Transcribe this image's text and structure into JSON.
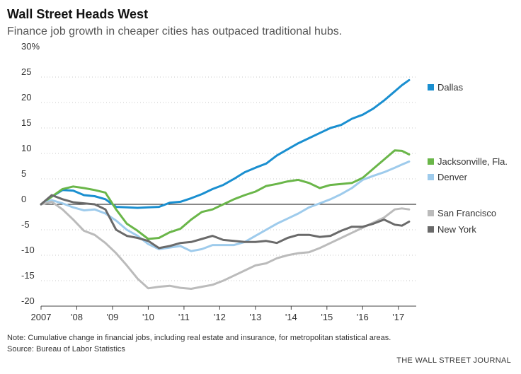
{
  "header": {
    "title": "Wall Street Heads West",
    "subtitle": "Finance job growth in cheaper cities has outpaced traditional hubs."
  },
  "footer": {
    "note": "Note: Cumulative change in financial jobs, including real estate and insurance, for metropolitan statistical areas.",
    "source": "Source: Bureau of Labor Statistics",
    "credit": "THE WALL STREET JOURNAL"
  },
  "chart_data": {
    "type": "line",
    "title": "Wall Street Heads West",
    "subtitle": "Finance job growth in cheaper cities has outpaced traditional hubs.",
    "xlabel": "",
    "ylabel": "",
    "xlim": [
      2007,
      2017.5
    ],
    "ylim": [
      -20,
      30
    ],
    "yticks": [
      -20,
      -15,
      -10,
      -5,
      0,
      5,
      10,
      15,
      20,
      25,
      30
    ],
    "ytick_labels": [
      "-20",
      "-15",
      "-10",
      "-5",
      "0",
      "5",
      "10",
      "15",
      "20",
      "25",
      "30%"
    ],
    "xticks": [
      2007,
      2008,
      2009,
      2010,
      2011,
      2012,
      2013,
      2014,
      2015,
      2016,
      2017
    ],
    "xtick_labels": [
      "2007",
      "'08",
      "'09",
      "'10",
      "'11",
      "'12",
      "'13",
      "'14",
      "'15",
      "'16",
      "'17"
    ],
    "zero_line": true,
    "grid": "horizontal dotted",
    "legend": "right, labels next to line ends",
    "series": [
      {
        "name": "Dallas",
        "color": "#1a8fd0",
        "x": [
          2007.0,
          2007.3,
          2007.6,
          2007.9,
          2008.2,
          2008.5,
          2008.8,
          2009.1,
          2009.4,
          2009.7,
          2010.0,
          2010.3,
          2010.6,
          2010.9,
          2011.2,
          2011.5,
          2011.8,
          2012.1,
          2012.4,
          2012.7,
          2013.0,
          2013.3,
          2013.6,
          2013.9,
          2014.2,
          2014.5,
          2014.8,
          2015.1,
          2015.4,
          2015.7,
          2016.0,
          2016.3,
          2016.6,
          2016.9,
          2017.1,
          2017.3
        ],
        "y": [
          0,
          1.5,
          2.8,
          2.7,
          1.8,
          1.6,
          1.0,
          -0.5,
          -0.6,
          -0.7,
          -0.6,
          -0.5,
          0.3,
          0.5,
          1.2,
          2.0,
          3.0,
          3.8,
          5.0,
          6.3,
          7.2,
          8.0,
          9.6,
          10.8,
          12.0,
          13.0,
          14.0,
          15.0,
          15.6,
          16.8,
          17.6,
          18.8,
          20.4,
          22.2,
          23.4,
          24.4
        ]
      },
      {
        "name": "Jacksonville, Fla.",
        "color": "#6ab649",
        "x": [
          2007.0,
          2007.3,
          2007.6,
          2007.9,
          2008.2,
          2008.5,
          2008.8,
          2009.1,
          2009.4,
          2009.7,
          2010.0,
          2010.3,
          2010.6,
          2010.9,
          2011.2,
          2011.5,
          2011.8,
          2012.1,
          2012.4,
          2012.7,
          2013.0,
          2013.3,
          2013.6,
          2013.9,
          2014.2,
          2014.5,
          2014.8,
          2015.1,
          2015.4,
          2015.7,
          2016.0,
          2016.3,
          2016.6,
          2016.9,
          2017.1,
          2017.3
        ],
        "y": [
          0,
          1.5,
          3.0,
          3.5,
          3.2,
          2.8,
          2.3,
          -1.0,
          -3.8,
          -5.2,
          -6.8,
          -6.6,
          -5.5,
          -4.8,
          -3.0,
          -1.5,
          -1.0,
          0,
          1.0,
          1.8,
          2.5,
          3.6,
          4.0,
          4.5,
          4.8,
          4.2,
          3.2,
          3.8,
          4.0,
          4.2,
          5.2,
          7.0,
          8.8,
          10.6,
          10.5,
          9.8
        ]
      },
      {
        "name": "Denver",
        "color": "#9ecbec",
        "x": [
          2007.0,
          2007.3,
          2007.6,
          2007.9,
          2008.2,
          2008.5,
          2008.8,
          2009.1,
          2009.4,
          2009.7,
          2010.0,
          2010.3,
          2010.6,
          2010.9,
          2011.2,
          2011.5,
          2011.8,
          2012.1,
          2012.4,
          2012.7,
          2013.0,
          2013.3,
          2013.6,
          2013.9,
          2014.2,
          2014.5,
          2014.8,
          2015.1,
          2015.4,
          2015.7,
          2016.0,
          2016.3,
          2016.6,
          2016.9,
          2017.1,
          2017.3
        ],
        "y": [
          0,
          0.8,
          0.2,
          -0.6,
          -1.2,
          -1.0,
          -1.8,
          -3.2,
          -5.0,
          -6.2,
          -7.8,
          -8.8,
          -8.5,
          -8.2,
          -9.2,
          -8.8,
          -8.0,
          -8.0,
          -8.0,
          -7.4,
          -6.2,
          -5.0,
          -3.8,
          -2.8,
          -1.8,
          -0.6,
          0.2,
          1.0,
          2.0,
          3.2,
          4.8,
          5.6,
          6.3,
          7.2,
          7.8,
          8.4
        ]
      },
      {
        "name": "San Francisco",
        "color": "#bbbbbb",
        "x": [
          2007.0,
          2007.3,
          2007.6,
          2007.9,
          2008.2,
          2008.5,
          2008.8,
          2009.1,
          2009.4,
          2009.7,
          2010.0,
          2010.3,
          2010.6,
          2010.9,
          2011.2,
          2011.5,
          2011.8,
          2012.1,
          2012.4,
          2012.7,
          2013.0,
          2013.3,
          2013.6,
          2013.9,
          2014.2,
          2014.5,
          2014.8,
          2015.1,
          2015.4,
          2015.7,
          2016.0,
          2016.3,
          2016.6,
          2016.9,
          2017.1,
          2017.3
        ],
        "y": [
          0,
          0.5,
          -1.0,
          -3.0,
          -5.2,
          -6.0,
          -7.6,
          -9.6,
          -12.0,
          -14.6,
          -16.5,
          -16.2,
          -16.0,
          -16.4,
          -16.6,
          -16.2,
          -15.8,
          -15.0,
          -14.0,
          -13.0,
          -12.0,
          -11.6,
          -10.6,
          -10.0,
          -9.6,
          -9.4,
          -8.6,
          -7.6,
          -6.6,
          -5.6,
          -4.6,
          -3.6,
          -2.6,
          -1.0,
          -0.8,
          -1.0
        ]
      },
      {
        "name": "New York",
        "color": "#6a6a6a",
        "x": [
          2007.0,
          2007.3,
          2007.6,
          2007.9,
          2008.2,
          2008.5,
          2008.8,
          2009.1,
          2009.4,
          2009.7,
          2010.0,
          2010.3,
          2010.6,
          2010.9,
          2011.2,
          2011.5,
          2011.8,
          2012.1,
          2012.4,
          2012.7,
          2013.0,
          2013.3,
          2013.6,
          2013.9,
          2014.2,
          2014.5,
          2014.8,
          2015.1,
          2015.4,
          2015.7,
          2016.0,
          2016.3,
          2016.6,
          2016.9,
          2017.1,
          2017.3
        ],
        "y": [
          0,
          1.8,
          1.0,
          0.4,
          0.2,
          0.0,
          -1.0,
          -5.0,
          -6.2,
          -6.6,
          -7.2,
          -8.6,
          -8.2,
          -7.6,
          -7.4,
          -6.8,
          -6.2,
          -7.0,
          -7.2,
          -7.4,
          -7.4,
          -7.2,
          -7.6,
          -6.6,
          -6.0,
          -6.0,
          -6.4,
          -6.2,
          -5.2,
          -4.4,
          -4.4,
          -3.8,
          -3.0,
          -4.0,
          -4.2,
          -3.4
        ]
      }
    ]
  }
}
